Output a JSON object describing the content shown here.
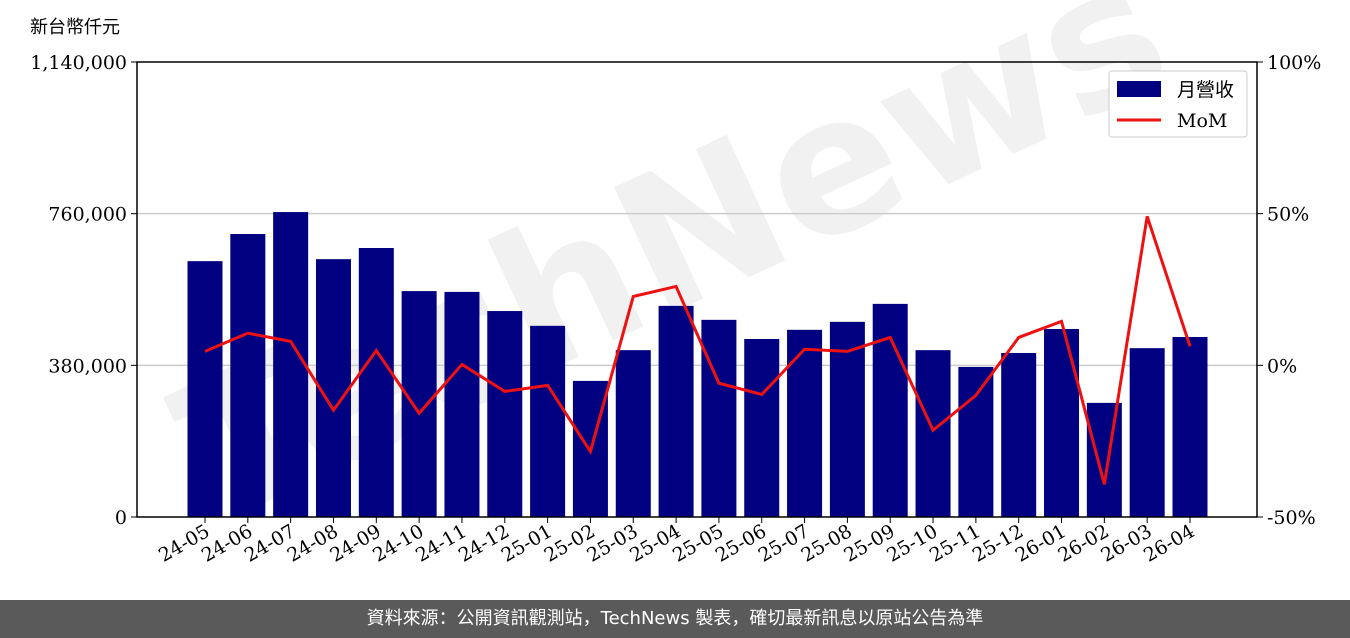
{
  "chart_data": {
    "type": "bar_line",
    "y_label": "新台幣仟元",
    "watermark": "TechNews",
    "categories": [
      "24-05",
      "24-06",
      "24-07",
      "24-08",
      "24-09",
      "24-10",
      "24-11",
      "24-12",
      "25-01",
      "25-02",
      "25-03",
      "25-04",
      "25-05",
      "25-06",
      "25-07",
      "25-08",
      "25-09",
      "25-10",
      "25-11",
      "25-12",
      "26-01",
      "26-02",
      "26-03",
      "26-04"
    ],
    "series": [
      {
        "name": "月營收",
        "type": "bar",
        "color": "#000080",
        "values": [
          641000,
          709000,
          764000,
          646000,
          674000,
          566000,
          564000,
          516000,
          479000,
          341000,
          418000,
          529000,
          494000,
          446000,
          469000,
          489000,
          534000,
          418000,
          376000,
          411000,
          471000,
          286000,
          423000,
          451000
        ]
      },
      {
        "name": "MoM",
        "type": "line",
        "axis": "y2",
        "color": "#ee1111",
        "values": [
          4.6,
          10.6,
          7.9,
          -14.8,
          4.9,
          -15.8,
          0.3,
          -8.6,
          -6.6,
          -28.4,
          22.7,
          26.0,
          -5.9,
          -9.6,
          5.3,
          4.6,
          9.2,
          -21.4,
          -9.9,
          9.2,
          14.5,
          -39.2,
          49.1,
          6.3
        ]
      }
    ],
    "ylim": [
      0,
      1140000
    ],
    "yticks": [
      0,
      {
        "value": 380000,
        "label": "380,000"
      },
      {
        "value": 760000,
        "label": "760,000"
      },
      {
        "value": 1140000,
        "label": "1,140,000"
      }
    ],
    "y2lim": [
      -50,
      100
    ],
    "y2ticks": [
      {
        "value": -50,
        "label": "-50%"
      },
      {
        "value": 0,
        "label": "0%"
      },
      {
        "value": 50,
        "label": "50%"
      },
      {
        "value": 100,
        "label": "100%"
      }
    ],
    "grid": true,
    "legend": "upper-right",
    "footer": "資料來源：公開資訊觀測站，TechNews 製表，確切最新訊息以原站公告為準"
  }
}
